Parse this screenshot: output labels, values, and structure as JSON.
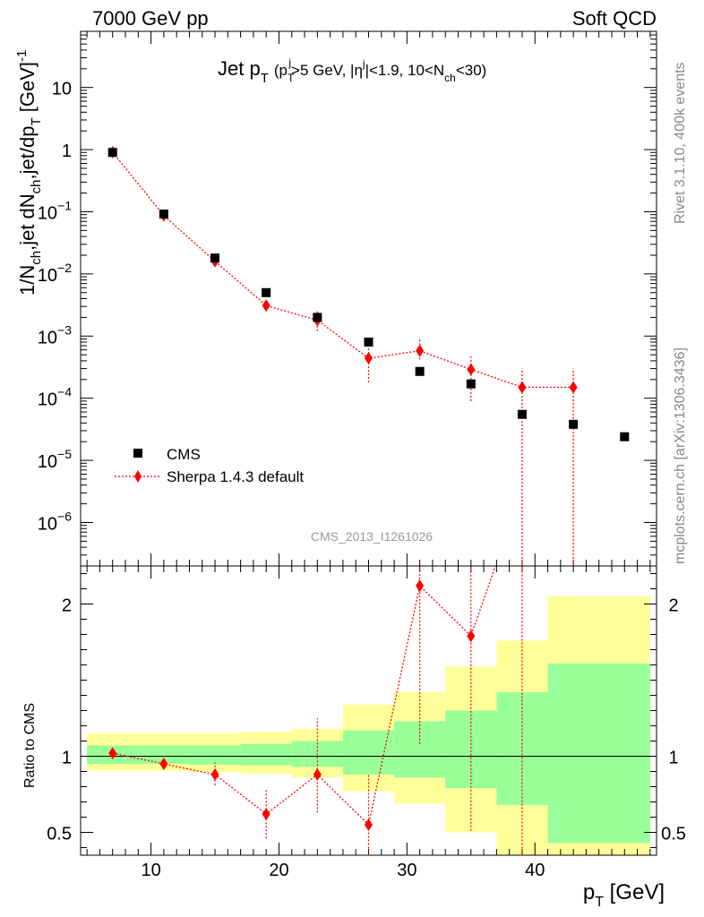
{
  "header": {
    "left": "7000 GeV pp",
    "right": "Soft QCD"
  },
  "side_labels": {
    "top": "Rivet 3.1.10,  400k events",
    "bottom": "mcplots.cern.ch [arXiv:1306.3436]"
  },
  "watermark": "CMS_2013_I1261026",
  "colors": {
    "data": "#000000",
    "mc": "#ff0000",
    "band_inner": "#99ff99",
    "band_outer": "#ffff99"
  },
  "chart_data": [
    {
      "type": "scatter",
      "title": {
        "main": "Jet p",
        "main_sub": "T",
        "cond": "(p",
        "cond_sub": "T",
        "cond_sup": "j",
        "cond_rest1": ">5 GeV, |η",
        "cond_sup2": "j",
        "cond_rest2": "|<1.9, 10<N",
        "cond_sub2": "ch",
        "cond_rest3": "<30)"
      },
      "ylabel": {
        "a": "1/N",
        "a_sub": "ch",
        "b": ",jet dN",
        "b_sub": "ch",
        "c": ",jet/dp",
        "c_sub": "T",
        "d": " [GeV]",
        "d_sup": "-1"
      },
      "yscale": "log",
      "ylim": [
        2e-07,
        80
      ],
      "xlim": [
        4.5,
        49.5
      ],
      "ytick_labels": [
        {
          "value": 10,
          "mantissa": "10",
          "exp": ""
        },
        {
          "value": 1,
          "mantissa": "1",
          "exp": ""
        },
        {
          "value": 0.1,
          "mantissa": "10",
          "exp": "−1"
        },
        {
          "value": 0.01,
          "mantissa": "10",
          "exp": "−2"
        },
        {
          "value": 0.001,
          "mantissa": "10",
          "exp": "−3"
        },
        {
          "value": 0.0001,
          "mantissa": "10",
          "exp": "−4"
        },
        {
          "value": 1e-05,
          "mantissa": "10",
          "exp": "−5"
        },
        {
          "value": 1e-06,
          "mantissa": "10",
          "exp": "−6"
        }
      ],
      "series": [
        {
          "name": "CMS",
          "style": "square",
          "x": [
            7,
            11,
            15,
            19,
            23,
            27,
            31,
            35,
            39,
            43,
            47
          ],
          "y": [
            0.9,
            0.092,
            0.018,
            0.005,
            0.002,
            0.0008,
            0.00027,
            0.00017,
            5.5e-05,
            3.8e-05,
            2.4e-05
          ]
        },
        {
          "name": "Sherpa 1.4.3 default",
          "style": "diamond-dotted",
          "x": [
            7,
            11,
            15,
            19,
            23,
            27,
            31,
            35,
            39,
            43
          ],
          "y": [
            0.91,
            0.087,
            0.016,
            0.0031,
            0.0018,
            0.00044,
            0.00058,
            0.00029,
            0.00015,
            0.00015
          ],
          "yerr_lo": [
            0.88,
            0.08,
            0.0143,
            0.0025,
            0.0012,
            0.00018,
            0.00042,
            9e-05,
            1e-07,
            1e-07
          ],
          "yerr_hi": [
            0.94,
            0.094,
            0.0177,
            0.0038,
            0.0025,
            0.0007,
            0.0009,
            0.0005,
            0.0003,
            0.0003
          ]
        }
      ],
      "legend": {
        "position": "bottom-left",
        "entries": [
          "CMS",
          "Sherpa 1.4.3 default"
        ]
      }
    },
    {
      "type": "line",
      "ylabel": "Ratio to CMS",
      "xlabel": {
        "a": "p",
        "a_sub": "T",
        "b": " [GeV]"
      },
      "ylim": [
        0.35,
        2.25
      ],
      "xlim": [
        4.5,
        49.5
      ],
      "yticks": [
        0.5,
        1,
        2
      ],
      "ytick_labels": [
        "0.5",
        "1",
        "2"
      ],
      "xticks": [
        10,
        20,
        30,
        40
      ],
      "xtick_labels": [
        "10",
        "20",
        "30",
        "40"
      ],
      "bands": {
        "edges": [
          5,
          9,
          13,
          17,
          21,
          25,
          29,
          33,
          37,
          41,
          49
        ],
        "inner_lo": [
          0.95,
          0.95,
          0.945,
          0.94,
          0.93,
          0.88,
          0.86,
          0.79,
          0.68,
          0.43
        ],
        "inner_hi": [
          1.07,
          1.07,
          1.07,
          1.08,
          1.1,
          1.17,
          1.23,
          1.3,
          1.42,
          1.61
        ],
        "outer_lo": [
          0.905,
          0.905,
          0.895,
          0.885,
          0.86,
          0.77,
          0.69,
          0.5,
          0.34,
          0.34
        ],
        "outer_hi": [
          1.15,
          1.15,
          1.15,
          1.16,
          1.18,
          1.34,
          1.42,
          1.59,
          1.76,
          2.05
        ]
      },
      "series": [
        {
          "name": "Sherpa 1.4.3 default",
          "x": [
            7,
            11,
            15,
            19,
            23,
            27,
            31,
            35,
            39
          ],
          "y": [
            1.02,
            0.95,
            0.88,
            0.62,
            0.88,
            0.55,
            2.12,
            1.79,
            2.75
          ],
          "yerr_lo": [
            1.0,
            0.92,
            0.81,
            0.46,
            0.63,
            0.3,
            1.08,
            0.51,
            0.3
          ],
          "yerr_hi": [
            1.04,
            0.98,
            0.96,
            0.78,
            1.25,
            0.88,
            2.25,
            2.25,
            2.25
          ]
        }
      ]
    }
  ]
}
